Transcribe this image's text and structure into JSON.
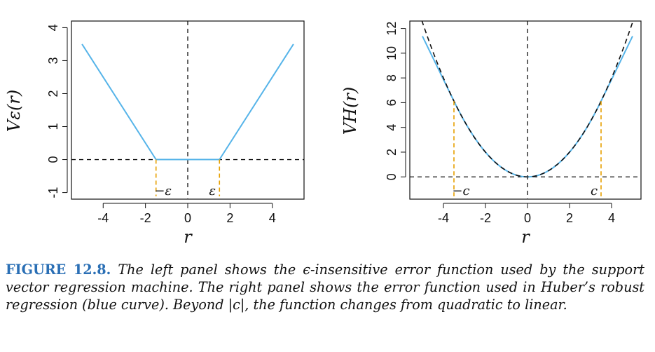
{
  "chart_data": [
    {
      "type": "line",
      "title": "",
      "xlabel": "r",
      "ylabel": "Vε(r)",
      "xlim": [
        -5.5,
        5.5
      ],
      "ylim": [
        -1.2,
        4.2
      ],
      "xticks": [
        -4,
        -2,
        0,
        2,
        4
      ],
      "yticks": [
        -1,
        0,
        1,
        2,
        3,
        4
      ],
      "grid": false,
      "series": [
        {
          "x": [
            -5,
            -1.5,
            1.5,
            5
          ],
          "y": [
            3.5,
            0,
            0,
            3.5
          ],
          "color": "#56b4e9"
        }
      ],
      "annotations": [
        {
          "label": "−ε",
          "x": -1.5
        },
        {
          "label": "ε",
          "x": 1.5
        }
      ],
      "reference_lines": {
        "horizontal_dashed_at_y": 0,
        "vertical_dashed_at_x": 0,
        "orange_dashed_at_x": [
          -1.5,
          1.5
        ]
      }
    },
    {
      "type": "line",
      "title": "",
      "xlabel": "r",
      "ylabel": "VH(r)",
      "xlim": [
        -5.6,
        5.4
      ],
      "ylim": [
        -1.8,
        12.6
      ],
      "xticks": [
        -4,
        -2,
        0,
        2,
        4
      ],
      "yticks": [
        0,
        2,
        4,
        6,
        8,
        10,
        12
      ],
      "grid": false,
      "huber_c": 3.5,
      "series": [
        {
          "x": [
            -5,
            -3.5,
            -2,
            -1,
            0,
            1,
            2,
            3.5,
            5
          ],
          "y": [
            11.375,
            6.125,
            2,
            0.5,
            0,
            0.5,
            2,
            6.125,
            11.375
          ],
          "color": "#56b4e9"
        },
        {
          "x": [
            -5,
            -3.5,
            -2,
            0,
            2,
            3.5,
            5
          ],
          "y": [
            12.5,
            6.125,
            2,
            0,
            2,
            6.125,
            12.5
          ],
          "color": "#111111",
          "style": "dashed"
        }
      ],
      "annotations": [
        {
          "label": "−c",
          "x": -3.5
        },
        {
          "label": "c",
          "x": 3.5
        }
      ],
      "reference_lines": {
        "horizontal_dashed_at_y": 0,
        "vertical_dashed_at_x": 0,
        "orange_dashed_at_x": [
          -3.5,
          3.5
        ]
      }
    }
  ],
  "caption": {
    "label": "FIGURE 12.8.",
    "text": "The left panel shows the ϵ-insensitive error function used by the support vector regression machine. The right panel shows the error function used in Huber’s robust regression (blue curve). Beyond |c|, the function changes from quadratic to linear."
  },
  "colors": {
    "curve": "#56b4e9",
    "marker_lines": "#e69f00",
    "reference": "#111111",
    "caption_label": "#2a6fb5"
  }
}
